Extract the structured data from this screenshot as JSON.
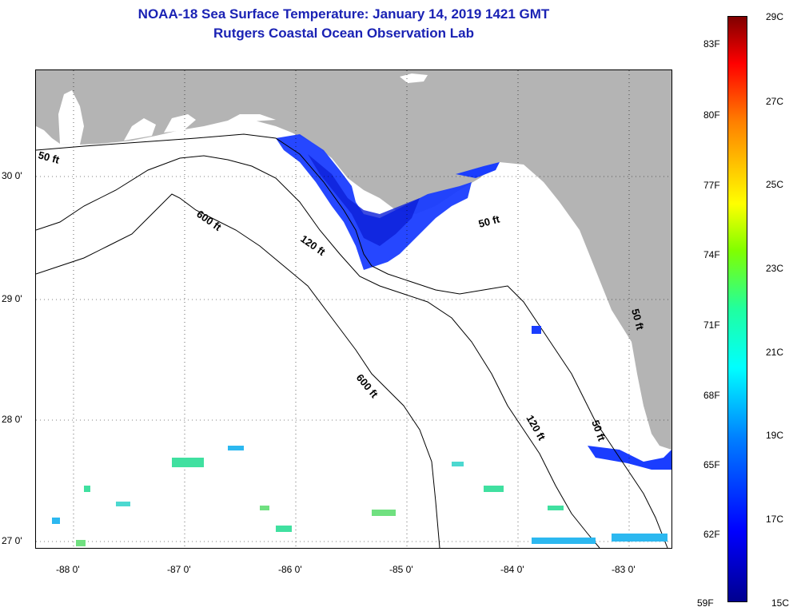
{
  "title": {
    "line1": "NOAA-18 Sea Surface Temperature:  January 14, 2019 1421 GMT",
    "line2": "Rutgers Coastal Ocean Observation Lab"
  },
  "map": {
    "lon_ticks": [
      "-88 0'",
      "-87 0'",
      "-86 0'",
      "-85 0'",
      "-84 0'",
      "-83 0'"
    ],
    "lat_ticks": [
      "30 0'",
      "29 0'",
      "28 0'",
      "27 0'"
    ],
    "contour_labels": [
      "50 ft",
      "600 ft",
      "120 ft",
      "50 ft",
      "600 ft",
      "120 ft",
      "50 ft",
      "50 ft"
    ],
    "colors": {
      "land": "#b4b4b4",
      "water": "#ffffff",
      "cold_sst": "#1a3dff",
      "deep_cold": "#0c1fd8"
    }
  },
  "colorbar": {
    "fahrenheit": [
      "83F",
      "80F",
      "77F",
      "74F",
      "71F",
      "68F",
      "65F",
      "62F",
      "59F"
    ],
    "celsius": [
      "29C",
      "27C",
      "25C",
      "23C",
      "21C",
      "19C",
      "17C",
      "15C"
    ]
  }
}
